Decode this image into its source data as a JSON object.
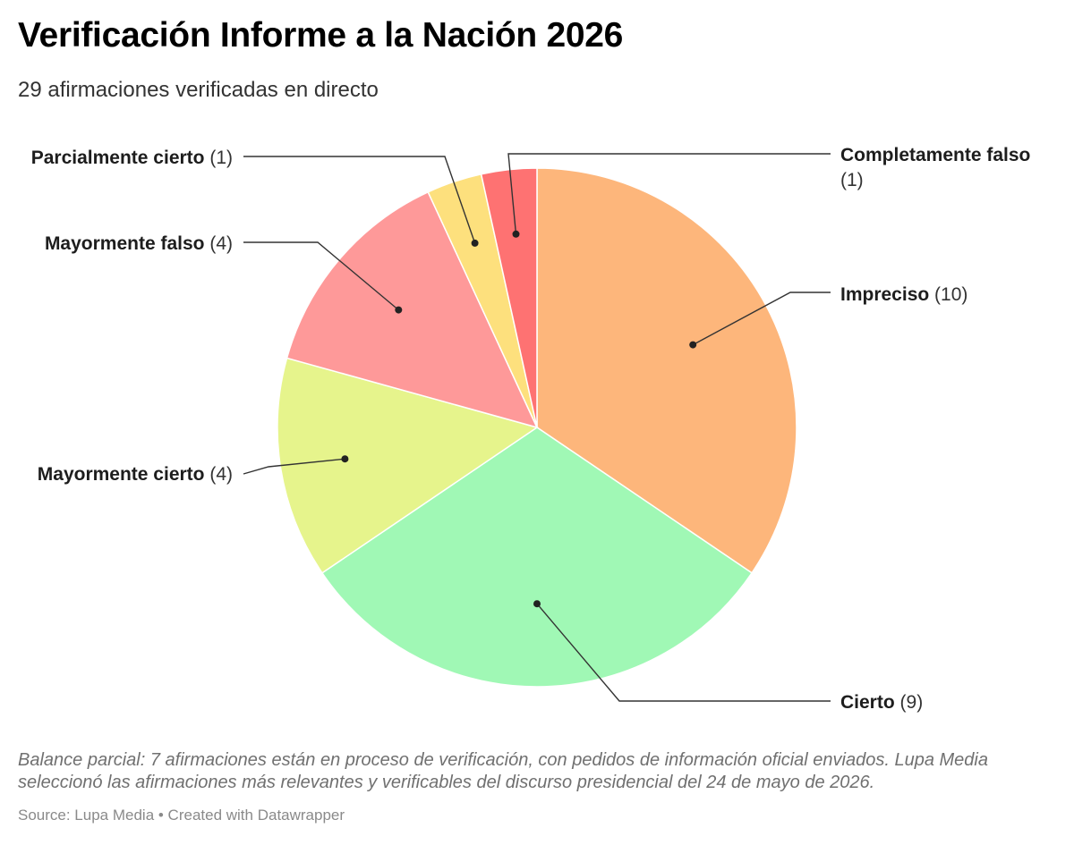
{
  "header": {
    "title": "Verificación Informe a la Nación 2026",
    "subtitle": "29 afirmaciones verificadas en directo"
  },
  "chart_data": {
    "type": "pie",
    "title": "Verificación Informe a la Nación 2026",
    "subtitle": "29 afirmaciones verificadas en directo",
    "total": 29,
    "start_position": "top",
    "direction": "clockwise",
    "slices": [
      {
        "label": "Impreciso",
        "value": 10,
        "count_label": "(10)",
        "color": "#FDB67B"
      },
      {
        "label": "Cierto",
        "value": 9,
        "count_label": "(9)",
        "color": "#A0F8B5"
      },
      {
        "label": "Mayormente cierto",
        "value": 4,
        "count_label": "(4)",
        "color": "#E6F48C"
      },
      {
        "label": "Mayormente falso",
        "value": 4,
        "count_label": "(4)",
        "color": "#FE9999"
      },
      {
        "label": "Parcialmente cierto",
        "value": 1,
        "count_label": "(1)",
        "color": "#FDE07D"
      },
      {
        "label": "Completamente falso",
        "value": 1,
        "count_label": "(1)",
        "color": "#FE7272"
      }
    ]
  },
  "footer": {
    "notes": "Balance parcial: 7 afirmaciones están en proceso de verificación, con pedidos de información oficial enviados. Lupa Media seleccionó las afirmaciones más relevantes y verificables del discurso presidencial del 24 de mayo de 2026.",
    "source": "Source: Lupa Media • Created with Datawrapper"
  }
}
